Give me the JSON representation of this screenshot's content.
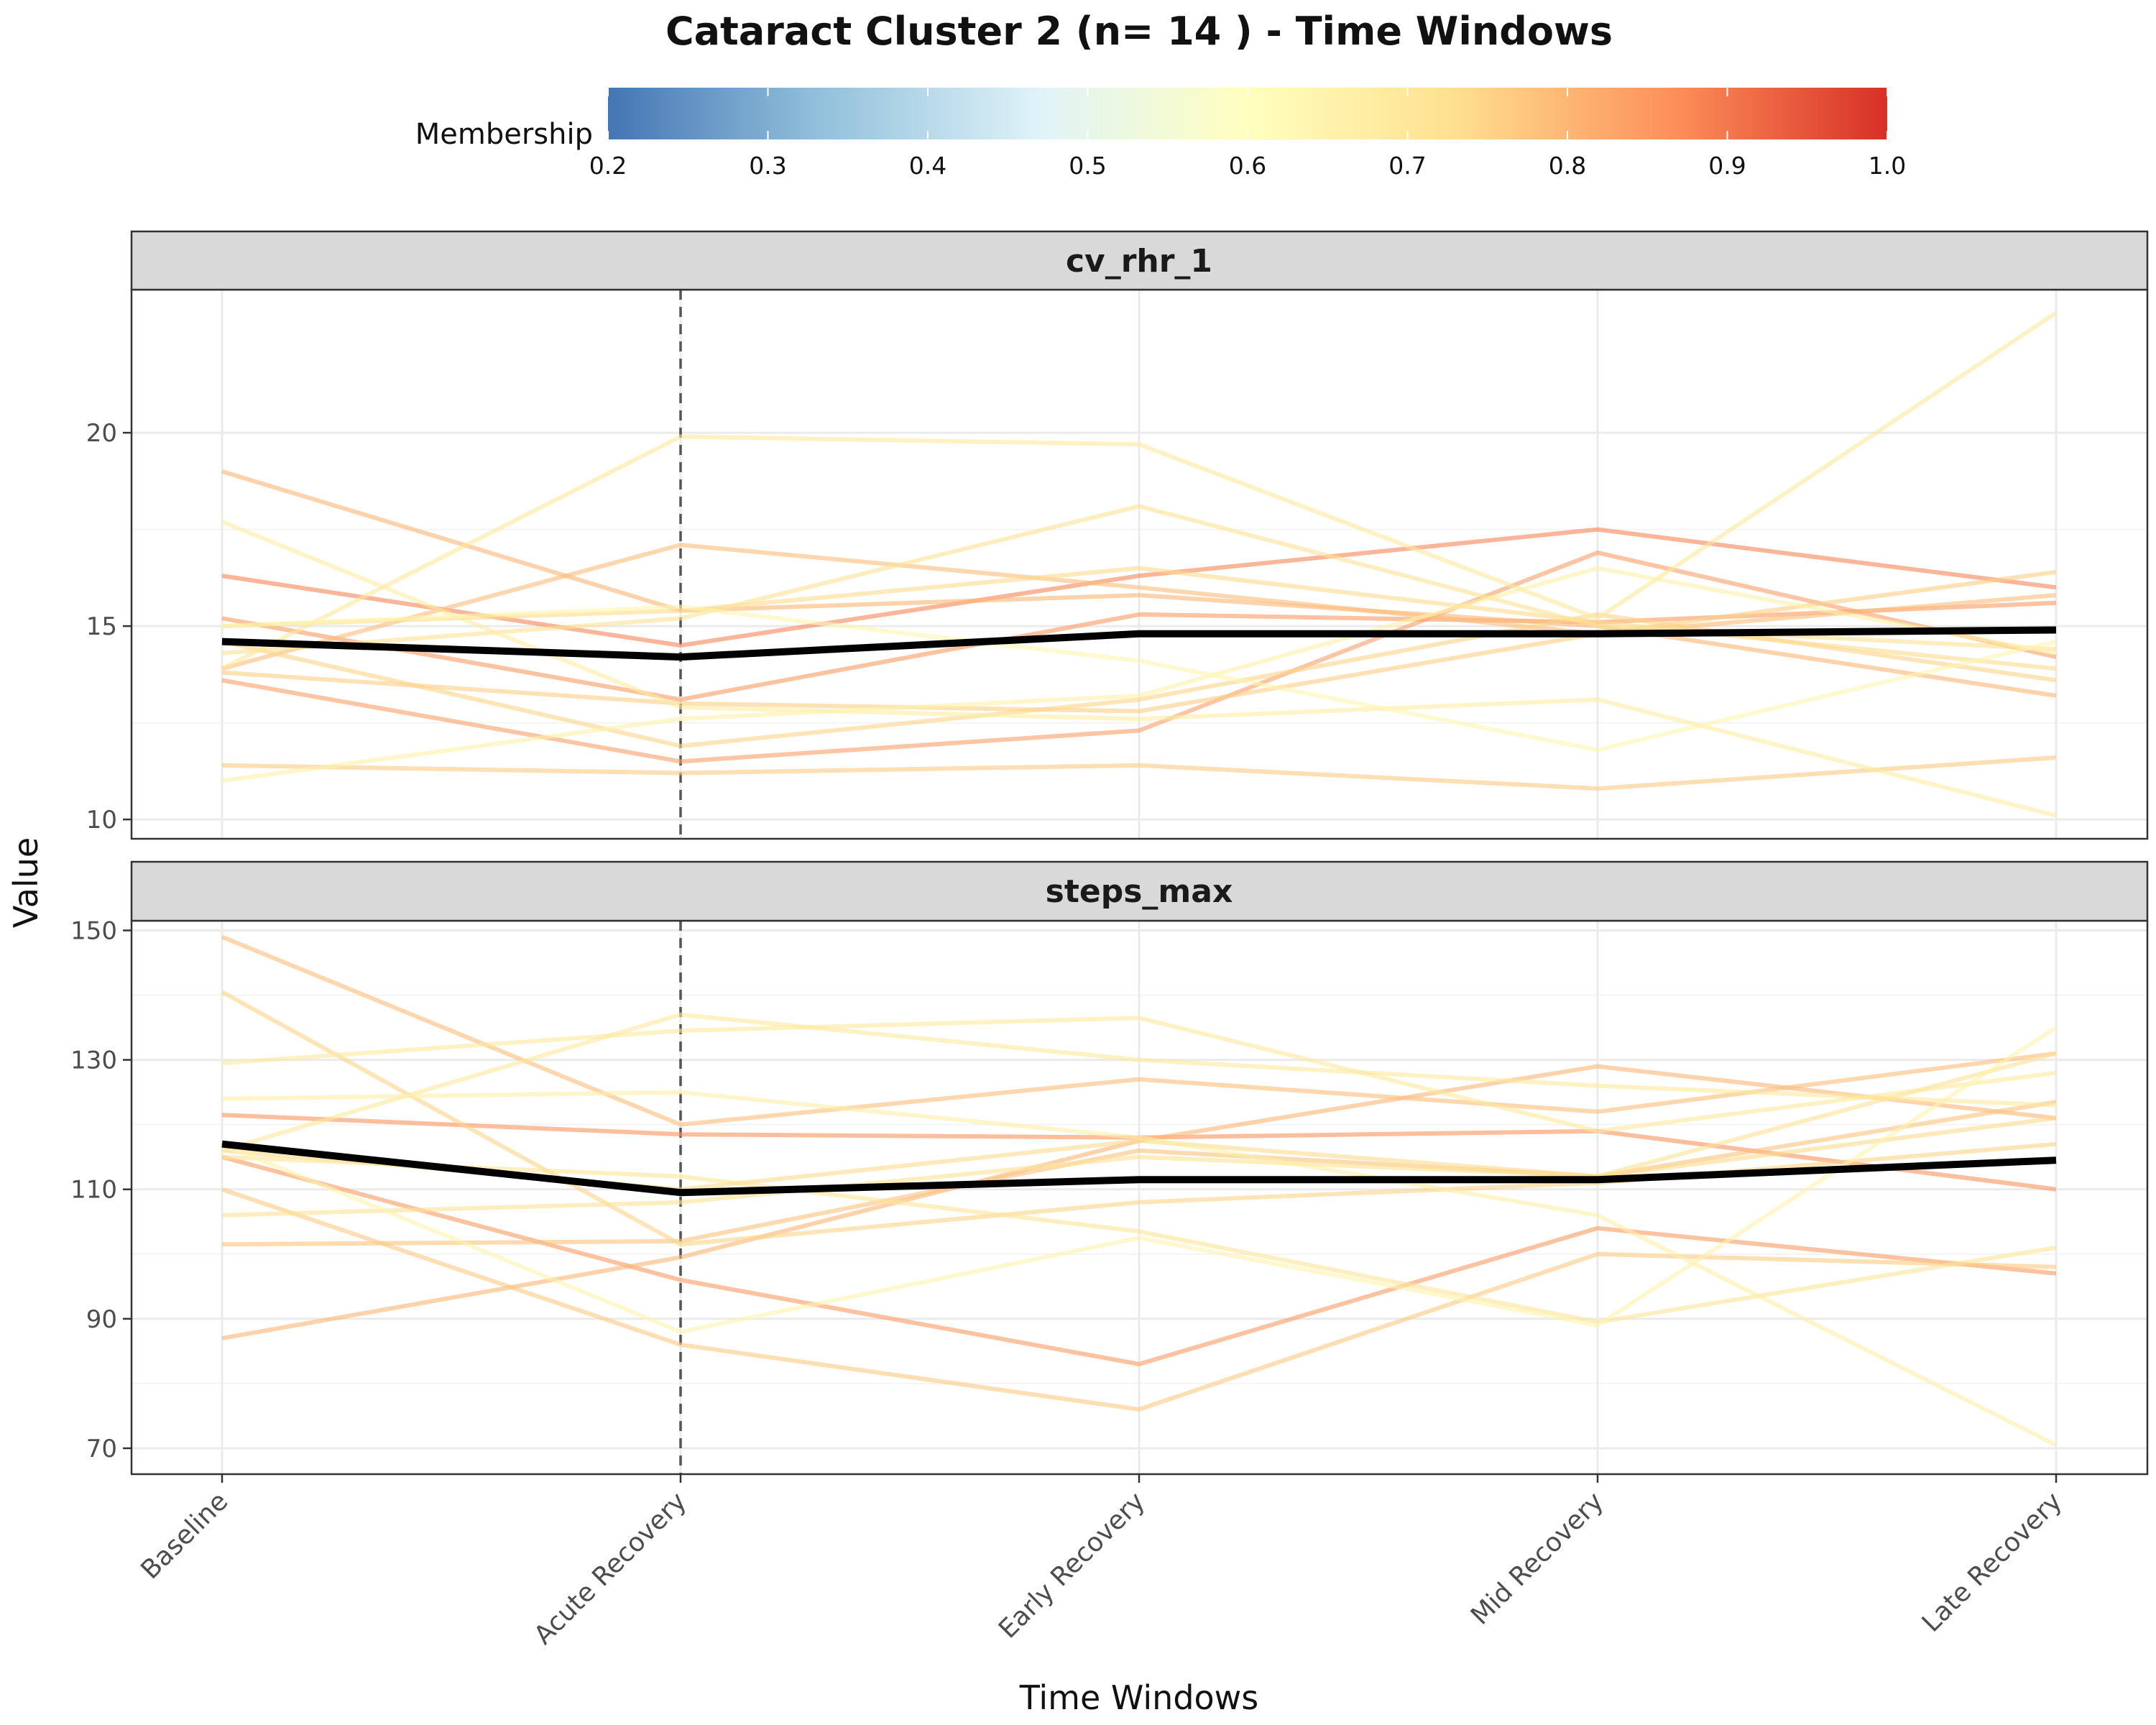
{
  "chart_data": {
    "type": "line",
    "title": "Cataract Cluster 2 (n= 14 ) - Time Windows",
    "xlabel": "Time Windows",
    "ylabel": "Value",
    "categories": [
      "Baseline",
      "Acute Recovery",
      "Early Recovery",
      "Mid Recovery",
      "Late Recovery"
    ],
    "reference_line": "Acute Recovery",
    "legend": {
      "title": "Membership",
      "position": "top",
      "range": [
        0.2,
        1.0
      ],
      "ticks": [
        "0.2",
        "0.3",
        "0.4",
        "0.5",
        "0.6",
        "0.7",
        "0.8",
        "0.9",
        "1.0"
      ],
      "stops": [
        {
          "value": 0.2,
          "color": "#4575b4"
        },
        {
          "value": 0.33,
          "color": "#91bfdb"
        },
        {
          "value": 0.47,
          "color": "#e0f3f8"
        },
        {
          "value": 0.6,
          "color": "#ffffbf"
        },
        {
          "value": 0.73,
          "color": "#fee090"
        },
        {
          "value": 0.87,
          "color": "#fc8d59"
        },
        {
          "value": 1.0,
          "color": "#d73027"
        }
      ]
    },
    "mean_color": "#000000",
    "panels": [
      {
        "name": "cv_rhr_1",
        "ylim": [
          9.5,
          23.7
        ],
        "yticks": [
          10,
          15,
          20
        ],
        "mean": [
          14.6,
          14.2,
          14.8,
          14.8,
          14.9
        ],
        "series": [
          {
            "membership": 0.88,
            "values": [
              16.3,
              14.5,
              16.3,
              17.5,
              16.0
            ]
          },
          {
            "membership": 0.85,
            "values": [
              15.2,
              13.1,
              15.3,
              15.1,
              15.6
            ]
          },
          {
            "membership": 0.84,
            "values": [
              13.6,
              11.5,
              12.3,
              16.9,
              14.2
            ]
          },
          {
            "membership": 0.8,
            "values": [
              19.0,
              15.4,
              15.8,
              15.0,
              13.2
            ]
          },
          {
            "membership": 0.79,
            "values": [
              13.9,
              17.1,
              16.0,
              14.8,
              15.8
            ]
          },
          {
            "membership": 0.77,
            "values": [
              11.4,
              11.2,
              11.4,
              10.8,
              11.6
            ]
          },
          {
            "membership": 0.76,
            "values": [
              13.8,
              13.0,
              12.8,
              14.8,
              16.4
            ]
          },
          {
            "membership": 0.75,
            "values": [
              14.6,
              11.9,
              13.1,
              15.3,
              13.6
            ]
          },
          {
            "membership": 0.74,
            "values": [
              15.0,
              15.4,
              16.5,
              15.1,
              13.9
            ]
          },
          {
            "membership": 0.72,
            "values": [
              14.3,
              15.2,
              18.1,
              15.0,
              14.4
            ]
          },
          {
            "membership": 0.7,
            "values": [
              13.9,
              19.9,
              19.7,
              15.2,
              23.1
            ]
          },
          {
            "membership": 0.68,
            "values": [
              17.7,
              12.9,
              12.6,
              13.1,
              10.1
            ]
          },
          {
            "membership": 0.66,
            "values": [
              11.0,
              12.6,
              13.2,
              16.5,
              14.3
            ]
          },
          {
            "membership": 0.64,
            "values": [
              15.0,
              15.5,
              14.1,
              11.8,
              14.6
            ]
          }
        ]
      },
      {
        "name": "steps_max",
        "ylim": [
          66,
          151.5
        ],
        "yticks": [
          70,
          90,
          110,
          130,
          150
        ],
        "mean": [
          117,
          109.5,
          111.5,
          111.5,
          114.5
        ],
        "series": [
          {
            "membership": 0.86,
            "values": [
              121.5,
              118.5,
              118,
              119,
              110
            ]
          },
          {
            "membership": 0.85,
            "values": [
              115,
              96,
              83,
              104,
              97
            ]
          },
          {
            "membership": 0.8,
            "values": [
              87,
              99.5,
              117.5,
              129,
              121
            ]
          },
          {
            "membership": 0.79,
            "values": [
              149,
              120,
              127,
              122,
              131
            ]
          },
          {
            "membership": 0.78,
            "values": [
              101.5,
              102,
              116,
              112,
              123.5
            ]
          },
          {
            "membership": 0.77,
            "values": [
              110,
              86,
              76,
              100,
              98
            ]
          },
          {
            "membership": 0.75,
            "values": [
              140.5,
              101.5,
              108,
              111,
              117
            ]
          },
          {
            "membership": 0.74,
            "values": [
              116,
              110,
              117.5,
              112,
              121
            ]
          },
          {
            "membership": 0.72,
            "values": [
              106,
              108,
              115,
              112,
              131
            ]
          },
          {
            "membership": 0.71,
            "values": [
              115,
              112,
              103.5,
              89.5,
              101
            ]
          },
          {
            "membership": 0.7,
            "values": [
              116,
              137,
              130,
              126,
              123
            ]
          },
          {
            "membership": 0.69,
            "values": [
              129.5,
              134.5,
              136.5,
              119,
              128
            ]
          },
          {
            "membership": 0.67,
            "values": [
              124,
              125,
              118,
              106,
              70.5
            ]
          },
          {
            "membership": 0.65,
            "values": [
              117,
              88,
              102.5,
              89,
              135
            ]
          }
        ]
      }
    ]
  }
}
